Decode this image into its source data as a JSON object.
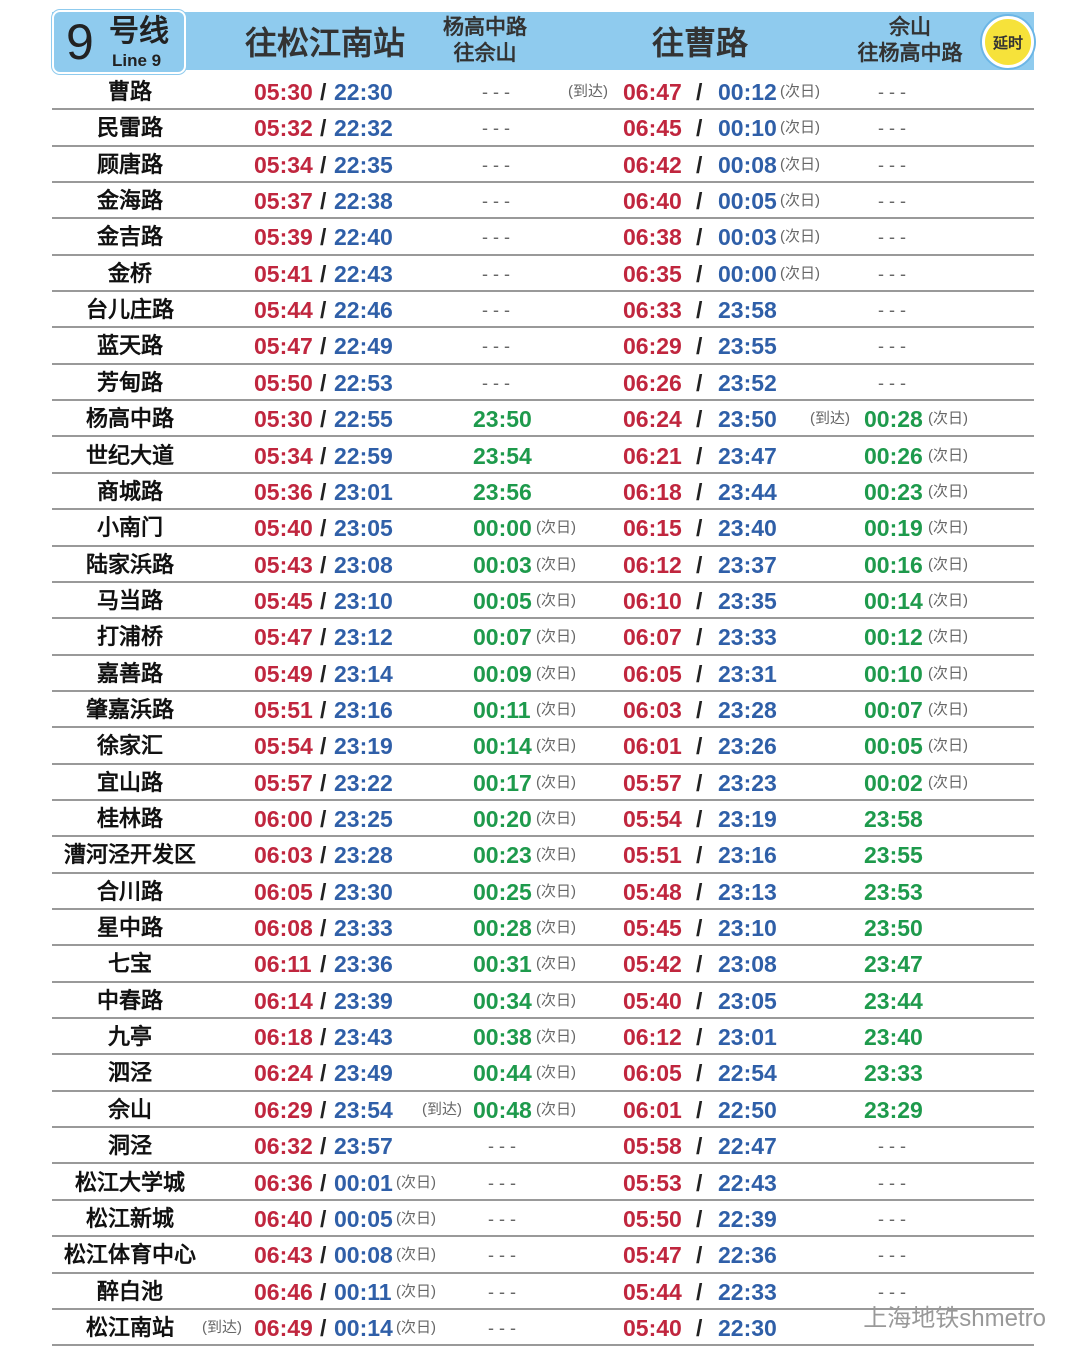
{
  "header": {
    "line_number": "9",
    "line_zh": "号线",
    "line_en": "Line 9",
    "col1": "往松江南站",
    "col2a": "杨高中路",
    "col2b": "往佘山",
    "col3": "往曹路",
    "col4a": "佘山",
    "col4b": "往杨高中路",
    "delay_badge": "延时"
  },
  "labels": {
    "next_day": "(次日)",
    "arrive": "(到达)",
    "none": "- - -"
  },
  "watermark": "上海地铁shmetro",
  "colors": {
    "first": "#c0263e",
    "last": "#2f5fa8",
    "branch": "#1e9a4c",
    "header": "#8fcbee"
  },
  "rows": [
    {
      "station": "曹路",
      "s_first": "05:30",
      "s_last": "22:30",
      "c_first": "06:47",
      "c_last": "00:12",
      "c_next": true,
      "c_arr": true
    },
    {
      "station": "民雷路",
      "s_first": "05:32",
      "s_last": "22:32",
      "c_first": "06:45",
      "c_last": "00:10",
      "c_next": true
    },
    {
      "station": "顾唐路",
      "s_first": "05:34",
      "s_last": "22:35",
      "c_first": "06:42",
      "c_last": "00:08",
      "c_next": true
    },
    {
      "station": "金海路",
      "s_first": "05:37",
      "s_last": "22:38",
      "c_first": "06:40",
      "c_last": "00:05",
      "c_next": true
    },
    {
      "station": "金吉路",
      "s_first": "05:39",
      "s_last": "22:40",
      "c_first": "06:38",
      "c_last": "00:03",
      "c_next": true
    },
    {
      "station": "金桥",
      "s_first": "05:41",
      "s_last": "22:43",
      "c_first": "06:35",
      "c_last": "00:00",
      "c_next": true
    },
    {
      "station": "台儿庄路",
      "s_first": "05:44",
      "s_last": "22:46",
      "c_first": "06:33",
      "c_last": "23:58"
    },
    {
      "station": "蓝天路",
      "s_first": "05:47",
      "s_last": "22:49",
      "c_first": "06:29",
      "c_last": "23:55"
    },
    {
      "station": "芳甸路",
      "s_first": "05:50",
      "s_last": "22:53",
      "c_first": "06:26",
      "c_last": "23:52"
    },
    {
      "station": "杨高中路",
      "s_first": "05:30",
      "s_last": "22:55",
      "b1": "23:50",
      "c_first": "06:24",
      "c_last": "23:50",
      "b2": "00:28",
      "b2_next": true,
      "b2_arr": true
    },
    {
      "station": "世纪大道",
      "s_first": "05:34",
      "s_last": "22:59",
      "b1": "23:54",
      "c_first": "06:21",
      "c_last": "23:47",
      "b2": "00:26",
      "b2_next": true
    },
    {
      "station": "商城路",
      "s_first": "05:36",
      "s_last": "23:01",
      "b1": "23:56",
      "c_first": "06:18",
      "c_last": "23:44",
      "b2": "00:23",
      "b2_next": true
    },
    {
      "station": "小南门",
      "s_first": "05:40",
      "s_last": "23:05",
      "b1": "00:00",
      "b1_next": true,
      "c_first": "06:15",
      "c_last": "23:40",
      "b2": "00:19",
      "b2_next": true
    },
    {
      "station": "陆家浜路",
      "s_first": "05:43",
      "s_last": "23:08",
      "b1": "00:03",
      "b1_next": true,
      "c_first": "06:12",
      "c_last": "23:37",
      "b2": "00:16",
      "b2_next": true
    },
    {
      "station": "马当路",
      "s_first": "05:45",
      "s_last": "23:10",
      "b1": "00:05",
      "b1_next": true,
      "c_first": "06:10",
      "c_last": "23:35",
      "b2": "00:14",
      "b2_next": true
    },
    {
      "station": "打浦桥",
      "s_first": "05:47",
      "s_last": "23:12",
      "b1": "00:07",
      "b1_next": true,
      "c_first": "06:07",
      "c_last": "23:33",
      "b2": "00:12",
      "b2_next": true
    },
    {
      "station": "嘉善路",
      "s_first": "05:49",
      "s_last": "23:14",
      "b1": "00:09",
      "b1_next": true,
      "c_first": "06:05",
      "c_last": "23:31",
      "b2": "00:10",
      "b2_next": true
    },
    {
      "station": "肇嘉浜路",
      "s_first": "05:51",
      "s_last": "23:16",
      "b1": "00:11",
      "b1_next": true,
      "c_first": "06:03",
      "c_last": "23:28",
      "b2": "00:07",
      "b2_next": true
    },
    {
      "station": "徐家汇",
      "s_first": "05:54",
      "s_last": "23:19",
      "b1": "00:14",
      "b1_next": true,
      "c_first": "06:01",
      "c_last": "23:26",
      "b2": "00:05",
      "b2_next": true
    },
    {
      "station": "宜山路",
      "s_first": "05:57",
      "s_last": "23:22",
      "b1": "00:17",
      "b1_next": true,
      "c_first": "05:57",
      "c_last": "23:23",
      "b2": "00:02",
      "b2_next": true
    },
    {
      "station": "桂林路",
      "s_first": "06:00",
      "s_last": "23:25",
      "b1": "00:20",
      "b1_next": true,
      "c_first": "05:54",
      "c_last": "23:19",
      "b2": "23:58"
    },
    {
      "station": "漕河泾开发区",
      "s_first": "06:03",
      "s_last": "23:28",
      "b1": "00:23",
      "b1_next": true,
      "c_first": "05:51",
      "c_last": "23:16",
      "b2": "23:55"
    },
    {
      "station": "合川路",
      "s_first": "06:05",
      "s_last": "23:30",
      "b1": "00:25",
      "b1_next": true,
      "c_first": "05:48",
      "c_last": "23:13",
      "b2": "23:53"
    },
    {
      "station": "星中路",
      "s_first": "06:08",
      "s_last": "23:33",
      "b1": "00:28",
      "b1_next": true,
      "c_first": "05:45",
      "c_last": "23:10",
      "b2": "23:50"
    },
    {
      "station": "七宝",
      "s_first": "06:11",
      "s_last": "23:36",
      "b1": "00:31",
      "b1_next": true,
      "c_first": "05:42",
      "c_last": "23:08",
      "b2": "23:47"
    },
    {
      "station": "中春路",
      "s_first": "06:14",
      "s_last": "23:39",
      "b1": "00:34",
      "b1_next": true,
      "c_first": "05:40",
      "c_last": "23:05",
      "b2": "23:44"
    },
    {
      "station": "九亭",
      "s_first": "06:18",
      "s_last": "23:43",
      "b1": "00:38",
      "b1_next": true,
      "c_first": "06:12",
      "c_last": "23:01",
      "b2": "23:40"
    },
    {
      "station": "泗泾",
      "s_first": "06:24",
      "s_last": "23:49",
      "b1": "00:44",
      "b1_next": true,
      "c_first": "06:05",
      "c_last": "22:54",
      "b2": "23:33"
    },
    {
      "station": "佘山",
      "s_first": "06:29",
      "s_last": "23:54",
      "b1": "00:48",
      "b1_next": true,
      "b1_arr": true,
      "c_first": "06:01",
      "c_last": "22:50",
      "b2": "23:29"
    },
    {
      "station": "洞泾",
      "s_first": "06:32",
      "s_last": "23:57",
      "c_first": "05:58",
      "c_last": "22:47"
    },
    {
      "station": "松江大学城",
      "s_first": "06:36",
      "s_last": "00:01",
      "s_next": true,
      "c_first": "05:53",
      "c_last": "22:43"
    },
    {
      "station": "松江新城",
      "s_first": "06:40",
      "s_last": "00:05",
      "s_next": true,
      "c_first": "05:50",
      "c_last": "22:39"
    },
    {
      "station": "松江体育中心",
      "s_first": "06:43",
      "s_last": "00:08",
      "s_next": true,
      "c_first": "05:47",
      "c_last": "22:36"
    },
    {
      "station": "醉白池",
      "s_first": "06:46",
      "s_last": "00:11",
      "s_next": true,
      "c_first": "05:44",
      "c_last": "22:33"
    },
    {
      "station": "松江南站",
      "s_first": "06:49",
      "s_last": "00:14",
      "s_next": true,
      "s_arr": true,
      "c_first": "05:40",
      "c_last": "22:30"
    }
  ]
}
